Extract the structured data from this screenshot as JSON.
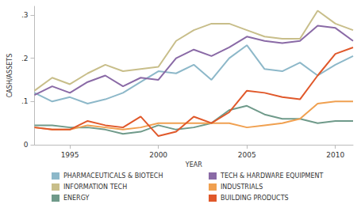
{
  "chart_data": {
    "type": "line",
    "x_label": "YEAR",
    "y_label": "CASH/ASSETS",
    "x": [
      1993,
      1994,
      1995,
      1996,
      1997,
      1998,
      1999,
      2000,
      2001,
      2002,
      2003,
      2004,
      2005,
      2006,
      2007,
      2008,
      2009,
      2010,
      2011
    ],
    "xlim": [
      1993,
      2011
    ],
    "xticks": [
      1995,
      2000,
      2005,
      2010
    ],
    "ylim": [
      0,
      0.32
    ],
    "yticks": [
      0,
      {
        "value": 0.1,
        "label": ".1"
      },
      {
        "value": 0.2,
        "label": ".2"
      },
      {
        "value": 0.3,
        "label": ".3"
      }
    ],
    "grid": false,
    "legend": "bottom",
    "series": [
      {
        "name": "PHARMACEUTICALS & BIOTECH",
        "color": "#8db8c9",
        "values": [
          0.12,
          0.1,
          0.11,
          0.095,
          0.105,
          0.12,
          0.145,
          0.17,
          0.165,
          0.185,
          0.15,
          0.2,
          0.23,
          0.175,
          0.17,
          0.19,
          0.16,
          0.185,
          0.205
        ]
      },
      {
        "name": "INFORMATION TECH",
        "color": "#c8be8a",
        "values": [
          0.125,
          0.155,
          0.14,
          0.165,
          0.185,
          0.17,
          0.175,
          0.18,
          0.24,
          0.265,
          0.28,
          0.28,
          0.265,
          0.25,
          0.245,
          0.245,
          0.31,
          0.28,
          0.265
        ]
      },
      {
        "name": "ENERGY",
        "color": "#6f9a8a",
        "values": [
          0.045,
          0.045,
          0.04,
          0.04,
          0.035,
          0.025,
          0.03,
          0.045,
          0.035,
          0.04,
          0.05,
          0.08,
          0.09,
          0.07,
          0.06,
          0.06,
          0.05,
          0.055,
          0.055
        ]
      },
      {
        "name": "TECH & HARDWARE EQUIPMENT",
        "color": "#8a6aa6",
        "values": [
          0.115,
          0.135,
          0.12,
          0.145,
          0.16,
          0.135,
          0.155,
          0.15,
          0.2,
          0.22,
          0.205,
          0.225,
          0.25,
          0.24,
          0.235,
          0.24,
          0.275,
          0.27,
          0.24
        ]
      },
      {
        "name": "INDUSTRIALS",
        "color": "#f0a050",
        "values": [
          0.04,
          0.035,
          0.035,
          0.045,
          0.04,
          0.035,
          0.04,
          0.05,
          0.05,
          0.05,
          0.05,
          0.05,
          0.04,
          0.045,
          0.05,
          0.06,
          0.095,
          0.1,
          0.1
        ]
      },
      {
        "name": "BUILDING PRODUCTS",
        "color": "#e0582a",
        "values": [
          0.04,
          0.035,
          0.035,
          0.055,
          0.045,
          0.04,
          0.065,
          0.02,
          0.03,
          0.065,
          0.05,
          0.075,
          0.125,
          0.12,
          0.11,
          0.105,
          0.16,
          0.21,
          0.225
        ]
      }
    ]
  }
}
